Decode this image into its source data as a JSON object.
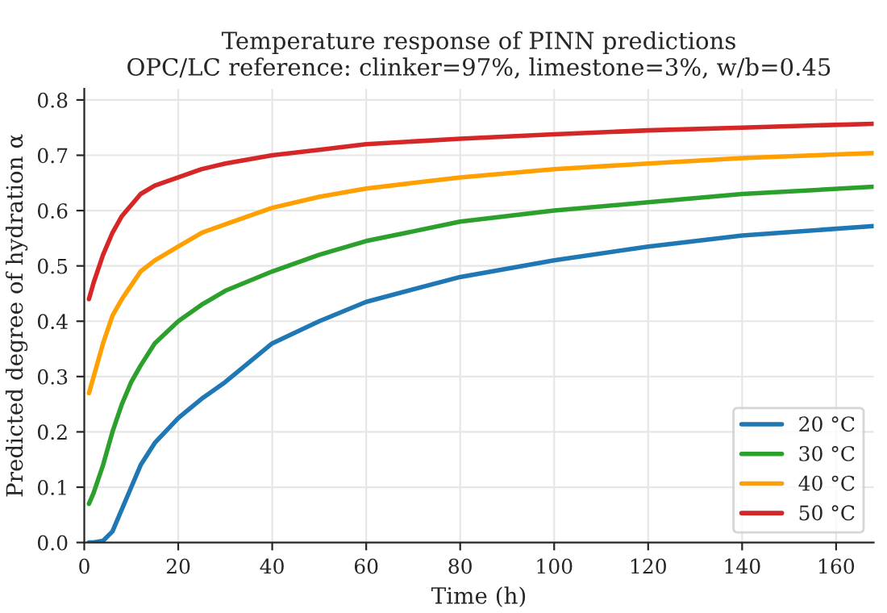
{
  "chart_data": {
    "type": "line",
    "title": "Temperature response of PINN predictions\nOPC/LC reference: clinker=97%, limestone=3%, w/b=0.45",
    "xlabel": "Time (h)",
    "ylabel": "Predicted degree of hydration α",
    "x": [
      1,
      2,
      4,
      6,
      8,
      10,
      12,
      15,
      20,
      25,
      30,
      40,
      50,
      60,
      80,
      100,
      120,
      140,
      168
    ],
    "series": [
      {
        "name": "20 °C",
        "color": "#1f77b4",
        "values": [
          0,
          0,
          0.003,
          0.02,
          0.06,
          0.1,
          0.14,
          0.18,
          0.225,
          0.26,
          0.29,
          0.36,
          0.4,
          0.435,
          0.48,
          0.51,
          0.535,
          0.555,
          0.572
        ]
      },
      {
        "name": "30 °C",
        "color": "#2ca02c",
        "values": [
          0.07,
          0.09,
          0.14,
          0.2,
          0.25,
          0.29,
          0.32,
          0.36,
          0.4,
          0.43,
          0.455,
          0.49,
          0.52,
          0.545,
          0.58,
          0.6,
          0.615,
          0.63,
          0.643
        ]
      },
      {
        "name": "40 °C",
        "color": "#ff9f00",
        "values": [
          0.27,
          0.3,
          0.36,
          0.41,
          0.44,
          0.465,
          0.49,
          0.51,
          0.535,
          0.56,
          0.575,
          0.605,
          0.625,
          0.64,
          0.66,
          0.675,
          0.685,
          0.695,
          0.704
        ]
      },
      {
        "name": "50 °C",
        "color": "#d62728",
        "values": [
          0.44,
          0.47,
          0.52,
          0.56,
          0.59,
          0.61,
          0.63,
          0.645,
          0.66,
          0.675,
          0.685,
          0.7,
          0.71,
          0.72,
          0.73,
          0.738,
          0.745,
          0.75,
          0.757
        ]
      }
    ],
    "xlim": [
      0,
      168
    ],
    "ylim": [
      0,
      0.82
    ],
    "xticks": [
      0,
      20,
      40,
      60,
      80,
      100,
      120,
      140,
      160
    ],
    "yticks": [
      {
        "value": 0,
        "label": "0.0"
      },
      0.1,
      0.2,
      0.3,
      0.4,
      0.5,
      0.6,
      0.7,
      0.8
    ],
    "grid": true,
    "legend": "bottom right",
    "marker": "none",
    "line_style": "solid"
  }
}
